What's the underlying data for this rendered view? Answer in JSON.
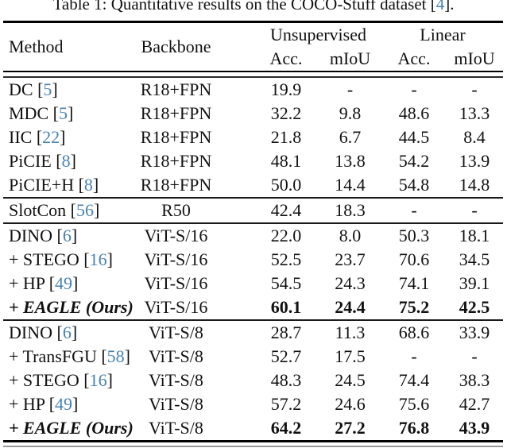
{
  "caption": {
    "before_cite": "Table 1: Quantitative results on the COCO-Stuff dataset [",
    "cite": "4",
    "after_cite": "]."
  },
  "colors": {
    "cite_blue": "#4682B4",
    "text": "#111111"
  },
  "table": {
    "col_headers": {
      "method": "Method",
      "backbone": "Backbone",
      "unsupervised": "Unsupervised",
      "linear": "Linear"
    },
    "sub_headers": [
      "Acc.",
      "mIoU",
      "Acc.",
      "mIoU"
    ],
    "groups": [
      {
        "rows": [
          {
            "method": "DC",
            "cite": "5",
            "backbone": "R18+FPN",
            "values": [
              "19.9",
              "-",
              "-",
              "-"
            ],
            "emph": false
          },
          {
            "method": "MDC",
            "cite": "5",
            "backbone": "R18+FPN",
            "values": [
              "32.2",
              "9.8",
              "48.6",
              "13.3"
            ],
            "emph": false
          },
          {
            "method": "IIC",
            "cite": "22",
            "backbone": "R18+FPN",
            "values": [
              "21.8",
              "6.7",
              "44.5",
              "8.4"
            ],
            "emph": false
          },
          {
            "method": "PiCIE",
            "cite": "8",
            "backbone": "R18+FPN",
            "values": [
              "48.1",
              "13.8",
              "54.2",
              "13.9"
            ],
            "emph": false
          },
          {
            "method": "PiCIE+H",
            "cite": "8",
            "backbone": "R18+FPN",
            "values": [
              "50.0",
              "14.4",
              "54.8",
              "14.8"
            ],
            "emph": false
          }
        ]
      },
      {
        "rows": [
          {
            "method": "SlotCon",
            "cite": "56",
            "backbone": "R50",
            "values": [
              "42.4",
              "18.3",
              "-",
              "-"
            ],
            "emph": false
          }
        ]
      },
      {
        "rows": [
          {
            "method": "DINO",
            "cite": "6",
            "backbone": "ViT-S/16",
            "values": [
              "22.0",
              "8.0",
              "50.3",
              "18.1"
            ],
            "emph": false
          },
          {
            "method": "+ STEGO",
            "cite": "16",
            "backbone": "ViT-S/16",
            "values": [
              "52.5",
              "23.7",
              "70.6",
              "34.5"
            ],
            "emph": false
          },
          {
            "method": "+ HP",
            "cite": "49",
            "backbone": "ViT-S/16",
            "values": [
              "54.5",
              "24.3",
              "74.1",
              "39.1"
            ],
            "emph": false
          },
          {
            "method": "+ EAGLE (Ours)",
            "cite": null,
            "backbone": "ViT-S/16",
            "values": [
              "60.1",
              "24.4",
              "75.2",
              "42.5"
            ],
            "emph": true
          }
        ]
      },
      {
        "rows": [
          {
            "method": "DINO",
            "cite": "6",
            "backbone": "ViT-S/8",
            "values": [
              "28.7",
              "11.3",
              "68.6",
              "33.9"
            ],
            "emph": false
          },
          {
            "method": "+ TransFGU",
            "cite": "58",
            "backbone": "ViT-S/8",
            "values": [
              "52.7",
              "17.5",
              "-",
              "-"
            ],
            "emph": false
          },
          {
            "method": "+ STEGO",
            "cite": "16",
            "backbone": "ViT-S/8",
            "values": [
              "48.3",
              "24.5",
              "74.4",
              "38.3"
            ],
            "emph": false
          },
          {
            "method": "+ HP",
            "cite": "49",
            "backbone": "ViT-S/8",
            "values": [
              "57.2",
              "24.6",
              "75.6",
              "42.7"
            ],
            "emph": false
          },
          {
            "method": "+ EAGLE (Ours)",
            "cite": null,
            "backbone": "ViT-S/8",
            "values": [
              "64.2",
              "27.2",
              "76.8",
              "43.9"
            ],
            "emph": true
          }
        ]
      }
    ]
  }
}
